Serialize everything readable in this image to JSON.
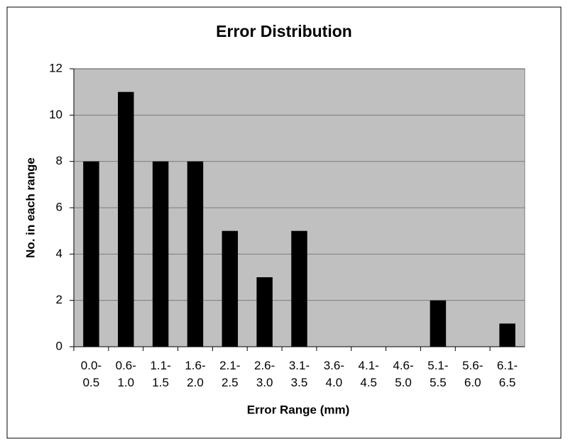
{
  "chart_data": {
    "type": "bar",
    "title": "Error Distribution",
    "x_label": "Error Range (mm)",
    "y_label": "No. in each range",
    "categories": [
      "0.0-\n0.5",
      "0.6-\n1.0",
      "1.1-\n1.5",
      "1.6-\n2.0",
      "2.1-\n2.5",
      "2.6-\n3.0",
      "3.1-\n3.5",
      "3.6-\n4.0",
      "4.1-\n4.5",
      "4.6-\n5.0",
      "5.1-\n5.5",
      "5.6-\n6.0",
      "6.1-\n6.5"
    ],
    "values": [
      8,
      11,
      8,
      8,
      5,
      3,
      5,
      0,
      0,
      0,
      2,
      0,
      1
    ],
    "color": "#000000",
    "ylim": [
      0,
      12
    ],
    "yticks": [
      0,
      2,
      4,
      6,
      8,
      10,
      12
    ],
    "grid": true
  }
}
